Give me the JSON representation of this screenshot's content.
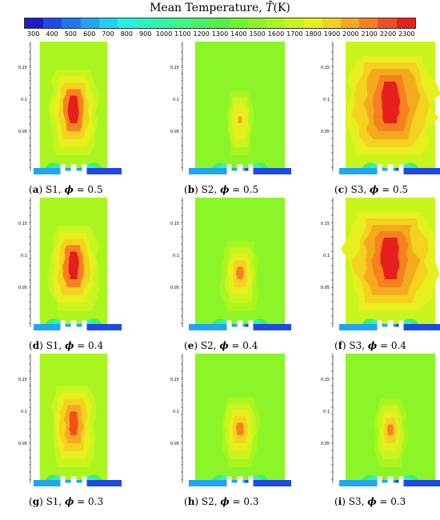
{
  "header": {
    "title_prefix": "Mean Temperature,",
    "title_symbol": "T̄",
    "title_unit": "(K)"
  },
  "colorbar": {
    "ticks": [
      "300",
      "400",
      "500",
      "600",
      "700",
      "800",
      "900",
      "1000",
      "1100",
      "1200",
      "1300",
      "1400",
      "1500",
      "1600",
      "1700",
      "1800",
      "1900",
      "2000",
      "2100",
      "2200",
      "2300"
    ],
    "colors": [
      "#1c1cc8",
      "#1e4ae6",
      "#1e78f0",
      "#1ea5f5",
      "#1ed2f5",
      "#23f0e6",
      "#28f5c3",
      "#32f5a0",
      "#3cf582",
      "#46f064",
      "#55f046",
      "#6ef532",
      "#8cf528",
      "#aaf51e",
      "#c8f51e",
      "#e6f01e",
      "#f5d21e",
      "#f5aa1e",
      "#f5821e",
      "#f0501e",
      "#e61e1e"
    ]
  },
  "axis": {
    "ticks": [
      "0.05",
      "0.1",
      "0.15"
    ]
  },
  "panels": [
    {
      "id": "a",
      "letter": "a",
      "case": "S1,",
      "phi_symbol": "ϕ",
      "phi_text": "= 0.5",
      "intensity": "S1-high"
    },
    {
      "id": "b",
      "letter": "b",
      "case": "S2,",
      "phi_symbol": "ϕ",
      "phi_text": "= 0.5",
      "intensity": "S2-low"
    },
    {
      "id": "c",
      "letter": "c",
      "case": "S3,",
      "phi_symbol": "ϕ",
      "phi_text": "= 0.5",
      "intensity": "S3-high"
    },
    {
      "id": "d",
      "letter": "d",
      "case": "S1,",
      "phi_symbol": "ϕ",
      "phi_text": "= 0.4",
      "intensity": "S1-high"
    },
    {
      "id": "e",
      "letter": "e",
      "case": "S2,",
      "phi_symbol": "ϕ",
      "phi_text": "= 0.4",
      "intensity": "S2-mid"
    },
    {
      "id": "f",
      "letter": "f",
      "case": "S3,",
      "phi_symbol": "ϕ",
      "phi_text": "= 0.4",
      "intensity": "S3-high"
    },
    {
      "id": "g",
      "letter": "g",
      "case": "S1,",
      "phi_symbol": "ϕ",
      "phi_text": "= 0.3",
      "intensity": "S1-low"
    },
    {
      "id": "h",
      "letter": "h",
      "case": "S2,",
      "phi_symbol": "ϕ",
      "phi_text": "= 0.3",
      "intensity": "S2-mid"
    },
    {
      "id": "i",
      "letter": "i",
      "case": "S3,",
      "phi_symbol": "ϕ",
      "phi_text": "= 0.3",
      "intensity": "S3-low"
    }
  ]
}
